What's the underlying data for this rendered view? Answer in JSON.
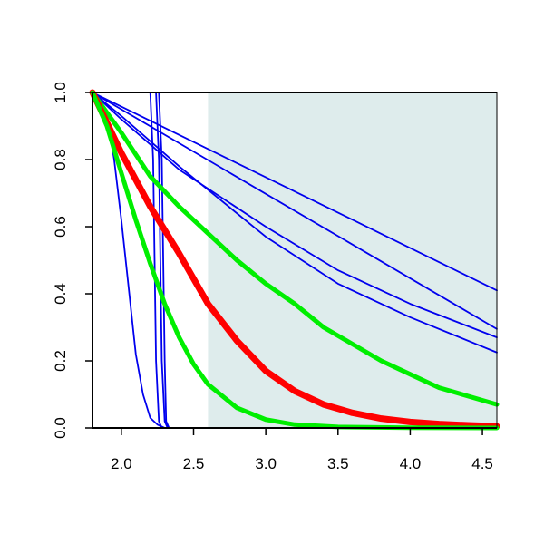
{
  "chart_data": {
    "type": "line",
    "title": "",
    "xlabel": "",
    "ylabel": "",
    "xlim": [
      1.8,
      4.6
    ],
    "ylim": [
      0.0,
      1.0
    ],
    "x_ticks": [
      "2.0",
      "2.5",
      "3.0",
      "3.5",
      "4.0",
      "4.5"
    ],
    "y_ticks": [
      "0.0",
      "0.2",
      "0.4",
      "0.6",
      "0.8",
      "1.0"
    ],
    "grid": false,
    "shaded_region": {
      "x_start": 2.6,
      "x_end": 4.6,
      "color": "#deecec"
    },
    "series": [
      {
        "color": "#0000ee",
        "width": 1.8,
        "points": [
          [
            1.8,
            1.0
          ],
          [
            4.6,
            0.41
          ]
        ]
      },
      {
        "color": "#0000ee",
        "width": 1.8,
        "points": [
          [
            1.8,
            1.0
          ],
          [
            4.6,
            0.295
          ]
        ]
      },
      {
        "color": "#0000ee",
        "width": 1.8,
        "points": [
          [
            1.8,
            1.0
          ],
          [
            2.0,
            0.92
          ],
          [
            2.4,
            0.77
          ],
          [
            3.0,
            0.6
          ],
          [
            3.5,
            0.47
          ],
          [
            4.0,
            0.37
          ],
          [
            4.6,
            0.27
          ]
        ]
      },
      {
        "color": "#0000ee",
        "width": 1.8,
        "points": [
          [
            1.8,
            1.0
          ],
          [
            2.0,
            0.93
          ],
          [
            2.4,
            0.78
          ],
          [
            3.0,
            0.57
          ],
          [
            3.5,
            0.43
          ],
          [
            4.0,
            0.33
          ],
          [
            4.6,
            0.225
          ]
        ]
      },
      {
        "color": "#0000ee",
        "width": 1.8,
        "points": [
          [
            1.8,
            1.0
          ],
          [
            2.2,
            1.0
          ],
          [
            2.22,
            0.8
          ],
          [
            2.23,
            0.5
          ],
          [
            2.24,
            0.2
          ],
          [
            2.26,
            0.02
          ],
          [
            2.28,
            0.0
          ],
          [
            4.6,
            0.0
          ]
        ]
      },
      {
        "color": "#0000ee",
        "width": 1.8,
        "points": [
          [
            1.8,
            1.0
          ],
          [
            2.24,
            1.0
          ],
          [
            2.26,
            0.8
          ],
          [
            2.27,
            0.5
          ],
          [
            2.28,
            0.2
          ],
          [
            2.3,
            0.02
          ],
          [
            2.32,
            0.0
          ],
          [
            4.6,
            0.0
          ]
        ]
      },
      {
        "color": "#0000ee",
        "width": 1.8,
        "points": [
          [
            1.8,
            1.0
          ],
          [
            2.26,
            1.0
          ],
          [
            2.28,
            0.8
          ],
          [
            2.29,
            0.5
          ],
          [
            2.3,
            0.2
          ],
          [
            2.31,
            0.02
          ],
          [
            2.33,
            0.0
          ],
          [
            4.6,
            0.0
          ]
        ]
      },
      {
        "color": "#0000ee",
        "width": 1.8,
        "points": [
          [
            1.8,
            1.0
          ],
          [
            1.9,
            0.93
          ],
          [
            1.95,
            0.8
          ],
          [
            2.0,
            0.62
          ],
          [
            2.05,
            0.42
          ],
          [
            2.1,
            0.22
          ],
          [
            2.15,
            0.1
          ],
          [
            2.2,
            0.03
          ],
          [
            2.25,
            0.01
          ],
          [
            2.3,
            0.0
          ],
          [
            4.6,
            0.0
          ]
        ]
      },
      {
        "color": "#00ee00",
        "width": 5,
        "points": [
          [
            1.8,
            1.0
          ],
          [
            2.0,
            0.88
          ],
          [
            2.2,
            0.75
          ],
          [
            2.4,
            0.66
          ],
          [
            2.6,
            0.58
          ],
          [
            2.8,
            0.5
          ],
          [
            3.0,
            0.43
          ],
          [
            3.2,
            0.37
          ],
          [
            3.4,
            0.3
          ],
          [
            3.6,
            0.25
          ],
          [
            3.8,
            0.2
          ],
          [
            4.0,
            0.16
          ],
          [
            4.2,
            0.12
          ],
          [
            4.4,
            0.095
          ],
          [
            4.6,
            0.07
          ]
        ]
      },
      {
        "color": "#ff0000",
        "width": 7,
        "points": [
          [
            1.8,
            1.0
          ],
          [
            2.0,
            0.82
          ],
          [
            2.2,
            0.66
          ],
          [
            2.4,
            0.52
          ],
          [
            2.6,
            0.37
          ],
          [
            2.8,
            0.26
          ],
          [
            3.0,
            0.17
          ],
          [
            3.2,
            0.11
          ],
          [
            3.4,
            0.07
          ],
          [
            3.6,
            0.045
          ],
          [
            3.8,
            0.028
          ],
          [
            4.0,
            0.018
          ],
          [
            4.2,
            0.012
          ],
          [
            4.4,
            0.008
          ],
          [
            4.6,
            0.005
          ]
        ]
      },
      {
        "color": "#00ee00",
        "width": 5,
        "points": [
          [
            1.8,
            1.0
          ],
          [
            1.9,
            0.9
          ],
          [
            2.0,
            0.76
          ],
          [
            2.1,
            0.62
          ],
          [
            2.2,
            0.49
          ],
          [
            2.3,
            0.37
          ],
          [
            2.4,
            0.27
          ],
          [
            2.5,
            0.19
          ],
          [
            2.6,
            0.13
          ],
          [
            2.8,
            0.06
          ],
          [
            3.0,
            0.025
          ],
          [
            3.2,
            0.01
          ],
          [
            3.5,
            0.003
          ],
          [
            4.0,
            0.0005
          ],
          [
            4.6,
            0.0
          ]
        ]
      }
    ]
  }
}
